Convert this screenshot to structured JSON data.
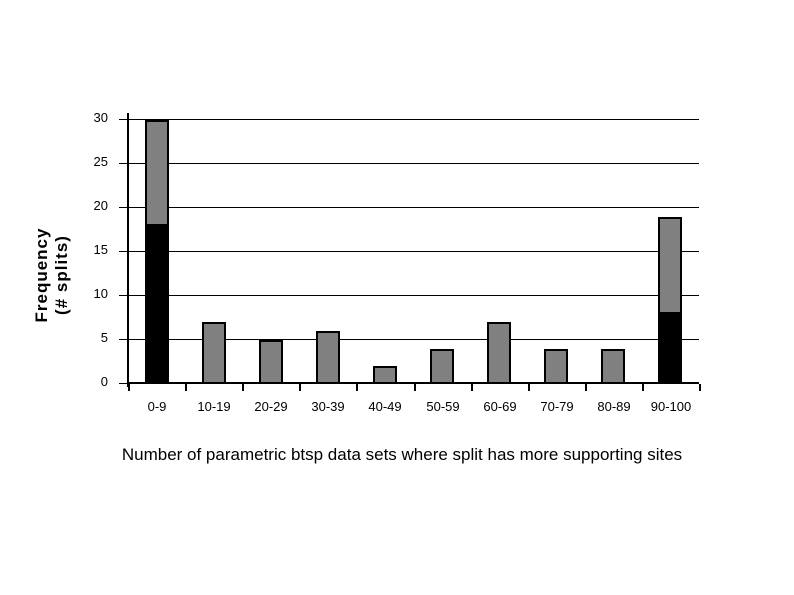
{
  "chart_data": {
    "type": "bar",
    "stacked": true,
    "title": "",
    "xlabel": "Number of parametric btsp data sets where split has more supporting sites",
    "ylabel_line1": "Frequency",
    "ylabel_line2": "(# splits)",
    "categories": [
      "0-9",
      "10-19",
      "20-29",
      "30-39",
      "40-49",
      "50-59",
      "60-69",
      "70-79",
      "80-89",
      "90-100"
    ],
    "series": [
      {
        "name": "black-segment",
        "color": "#000000",
        "values": [
          18,
          0,
          0,
          0,
          0,
          0,
          0,
          0,
          0,
          8
        ]
      },
      {
        "name": "gray-segment",
        "color": "#808080",
        "values": [
          12,
          7,
          5,
          6,
          2,
          4,
          7,
          4,
          4,
          11
        ]
      }
    ],
    "totals": [
      30,
      7,
      5,
      6,
      2,
      4,
      7,
      4,
      4,
      19
    ],
    "yticks": [
      0,
      5,
      10,
      15,
      20,
      25,
      30
    ],
    "ylim": [
      0,
      30
    ],
    "grid": true,
    "legend": "none",
    "colors": {
      "bar_fill_gray": "#808080",
      "bar_fill_black": "#000000",
      "bar_border": "#000000",
      "axis": "#000000",
      "background": "#ffffff"
    }
  }
}
